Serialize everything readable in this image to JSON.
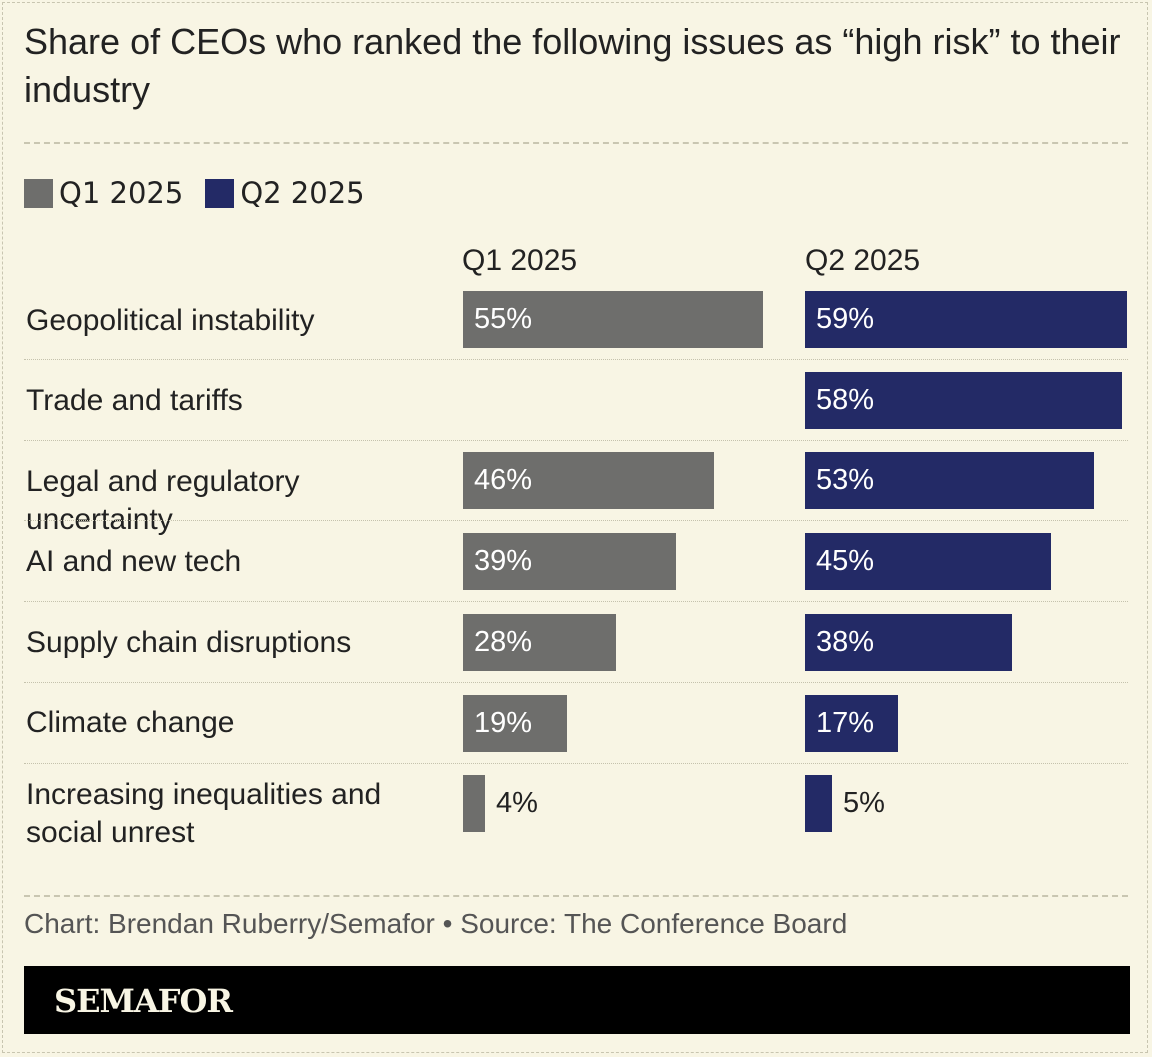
{
  "title": "Share of CEOs who ranked the following issues as “high risk” to their industry",
  "legend": [
    {
      "label": "Q1 2025",
      "color": "#6e6e6c"
    },
    {
      "label": "Q2 2025",
      "color": "#232a66"
    }
  ],
  "columns": [
    "Q1 2025",
    "Q2 2025"
  ],
  "credit": "Chart: Brendan Ruberry/Semafor • Source: The Conference Board",
  "brand": "SEMAFOR",
  "chart_data": {
    "type": "bar",
    "orientation": "horizontal",
    "title": "Share of CEOs who ranked the following issues as “high risk” to their industry",
    "categories": [
      "Geopolitical instability",
      "Trade and tariffs",
      "Legal and regulatory uncertainty",
      "AI and new tech",
      "Supply chain disruptions",
      "Climate change",
      "Increasing inequalities and social unrest"
    ],
    "series": [
      {
        "name": "Q1 2025",
        "values": [
          55,
          null,
          46,
          39,
          28,
          19,
          4
        ],
        "labels": [
          "55%",
          "",
          "46%",
          "39%",
          "28%",
          "19%",
          "4%"
        ],
        "color": "#6e6e6c"
      },
      {
        "name": "Q2 2025",
        "values": [
          59,
          58,
          53,
          45,
          38,
          17,
          5
        ],
        "labels": [
          "59%",
          "58%",
          "53%",
          "45%",
          "38%",
          "17%",
          "5%"
        ],
        "color": "#232a66"
      }
    ],
    "xlim": [
      0,
      59
    ],
    "grid": false,
    "legend_position": "top-left"
  }
}
